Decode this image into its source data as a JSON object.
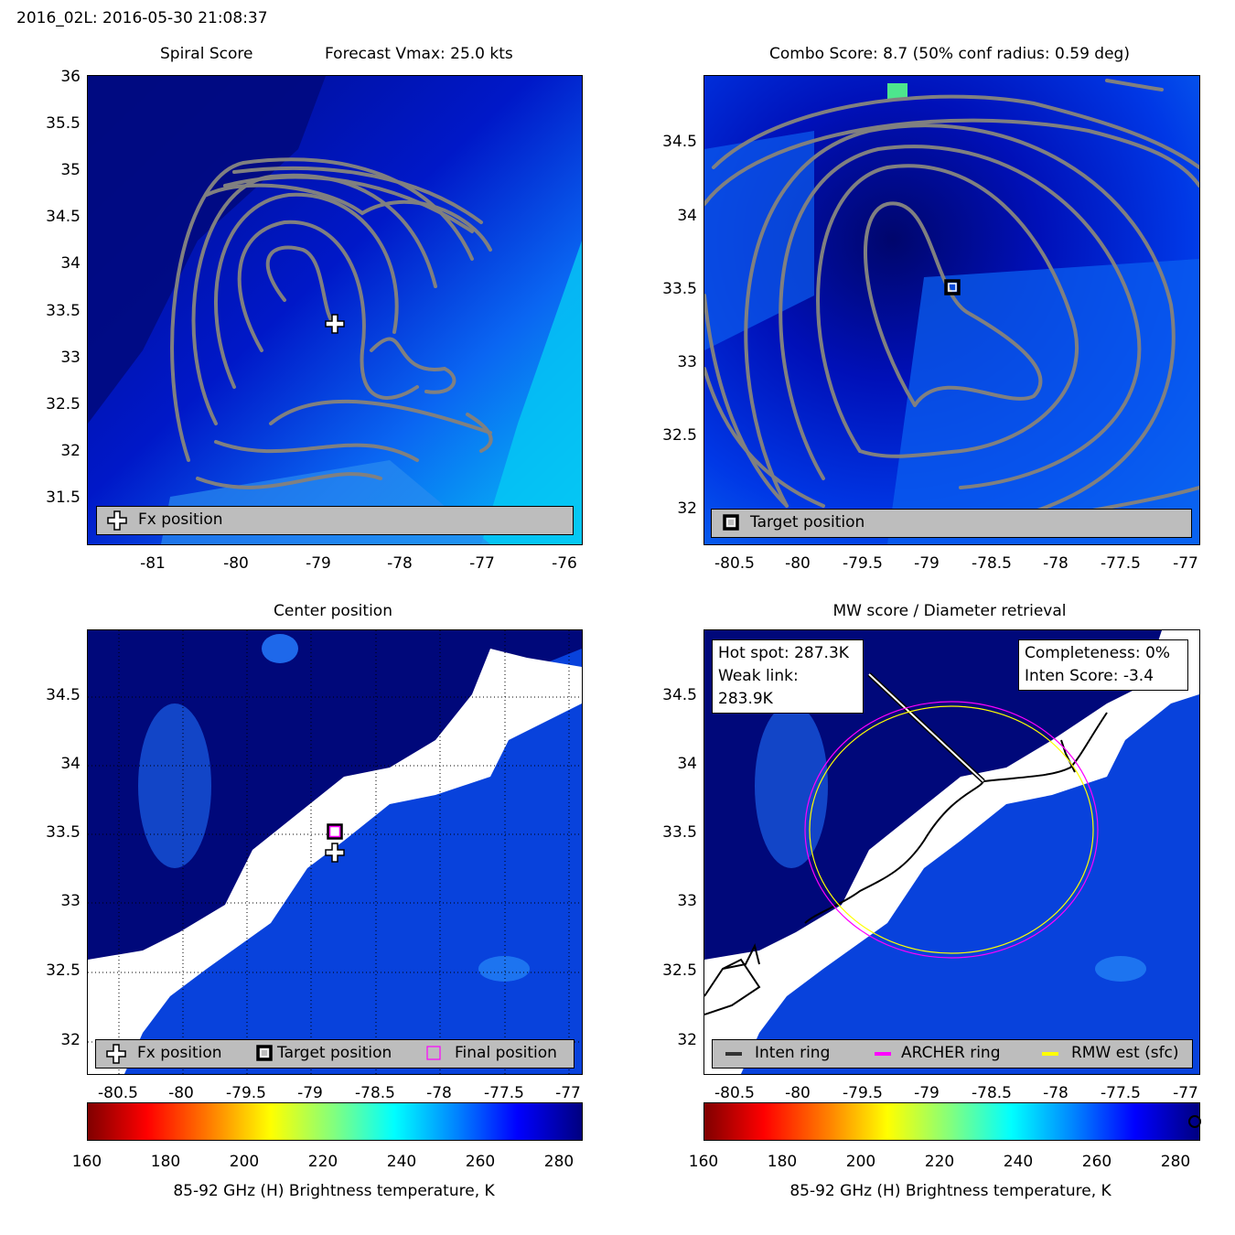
{
  "header": {
    "storm_time": "2016_02L: 2016-05-30 21:08:37"
  },
  "colors": {
    "contour": "#808080",
    "inten_ring": "#000000",
    "archer_ring": "#ff00ff",
    "rmw_ring": "#ffff00"
  },
  "panels": {
    "spiral": {
      "title_left": "Spiral Score",
      "title_right": "Forecast Vmax: 25.0 kts",
      "xticks": [
        "-81",
        "-80",
        "-79",
        "-78",
        "-77",
        "-76"
      ],
      "yticks": [
        "36",
        "35.5",
        "35",
        "34.5",
        "34",
        "33.5",
        "33",
        "32.5",
        "32",
        "31.5"
      ],
      "legend": {
        "fx": "Fx position"
      }
    },
    "combo": {
      "title": "Combo Score: 8.7  (50% conf radius: 0.59 deg)",
      "xticks": [
        "-80.5",
        "-80",
        "-79.5",
        "-79",
        "-78.5",
        "-78",
        "-77.5",
        "-77"
      ],
      "yticks": [
        "34.5",
        "34",
        "33.5",
        "33",
        "32.5",
        "32"
      ],
      "legend": {
        "target": "Target position"
      }
    },
    "center": {
      "title": "Center position",
      "xticks": [
        "-80.5",
        "-80",
        "-79.5",
        "-79",
        "-78.5",
        "-78",
        "-77.5",
        "-77"
      ],
      "yticks": [
        "34.5",
        "34",
        "33.5",
        "33",
        "32.5",
        "32"
      ],
      "legend": {
        "fx": "Fx position",
        "target": "Target position",
        "final": "Final position"
      }
    },
    "mw": {
      "title": "MW score / Diameter retrieval",
      "xticks": [
        "-80.5",
        "-80",
        "-79.5",
        "-79",
        "-78.5",
        "-78",
        "-77.5",
        "-77"
      ],
      "yticks": [
        "34.5",
        "34",
        "33.5",
        "33",
        "32.5",
        "32"
      ],
      "hot_spot": "Hot spot: 287.3K",
      "weak_link": "Weak link: 283.9K",
      "completeness": "Completeness: 0%",
      "inten_score": "Inten Score: -3.4",
      "legend": {
        "inten": "Inten ring",
        "archer": "ARCHER ring",
        "rmw": "RMW est (sfc)"
      }
    }
  },
  "colorbar": {
    "ticks": [
      "160",
      "180",
      "200",
      "220",
      "240",
      "260",
      "280"
    ],
    "label": "85-92 GHz (H) Brightness temperature, K"
  },
  "chart_data": [
    {
      "type": "heatmap",
      "title": "Spiral Score",
      "subtitle": "Forecast Vmax: 25.0 kts",
      "xlim": [
        -81.8,
        -75.8
      ],
      "ylim": [
        31.05,
        36.05
      ],
      "grid": false,
      "markers": [
        {
          "name": "Fx position",
          "x": -78.8,
          "y": 33.38
        }
      ],
      "legend_placement": "bottom"
    },
    {
      "type": "heatmap",
      "title": "Combo Score: 8.7  (50% conf radius: 0.59 deg)",
      "xlim": [
        -80.7,
        -76.9
      ],
      "ylim": [
        31.78,
        34.99
      ],
      "grid": false,
      "markers": [
        {
          "name": "Target position",
          "x": -78.8,
          "y": 33.52
        }
      ],
      "legend_placement": "bottom"
    },
    {
      "type": "heatmap",
      "title": "Center position",
      "xlim": [
        -80.7,
        -76.9
      ],
      "ylim": [
        31.78,
        34.99
      ],
      "grid": true,
      "markers": [
        {
          "name": "Fx position",
          "x": -78.8,
          "y": 33.38
        },
        {
          "name": "Target position",
          "x": -78.8,
          "y": 33.52
        },
        {
          "name": "Final position",
          "x": -78.8,
          "y": 33.52
        }
      ],
      "legend_placement": "bottom"
    },
    {
      "type": "heatmap",
      "title": "MW score / Diameter retrieval",
      "xlim": [
        -80.7,
        -76.9
      ],
      "ylim": [
        31.78,
        34.99
      ],
      "grid": false,
      "rings_deg_radius": {
        "inten_ring": 0.0,
        "archer_ring": 1.1,
        "rmw_est_sfc": 1.08
      },
      "hot_spot_K": 287.3,
      "weak_link_K": 283.9,
      "completeness_pct": 0,
      "inten_score": -3.4,
      "legend_placement": "bottom"
    }
  ],
  "colorbar_data": {
    "range": [
      160,
      285
    ],
    "colormap": "jet reversed"
  }
}
